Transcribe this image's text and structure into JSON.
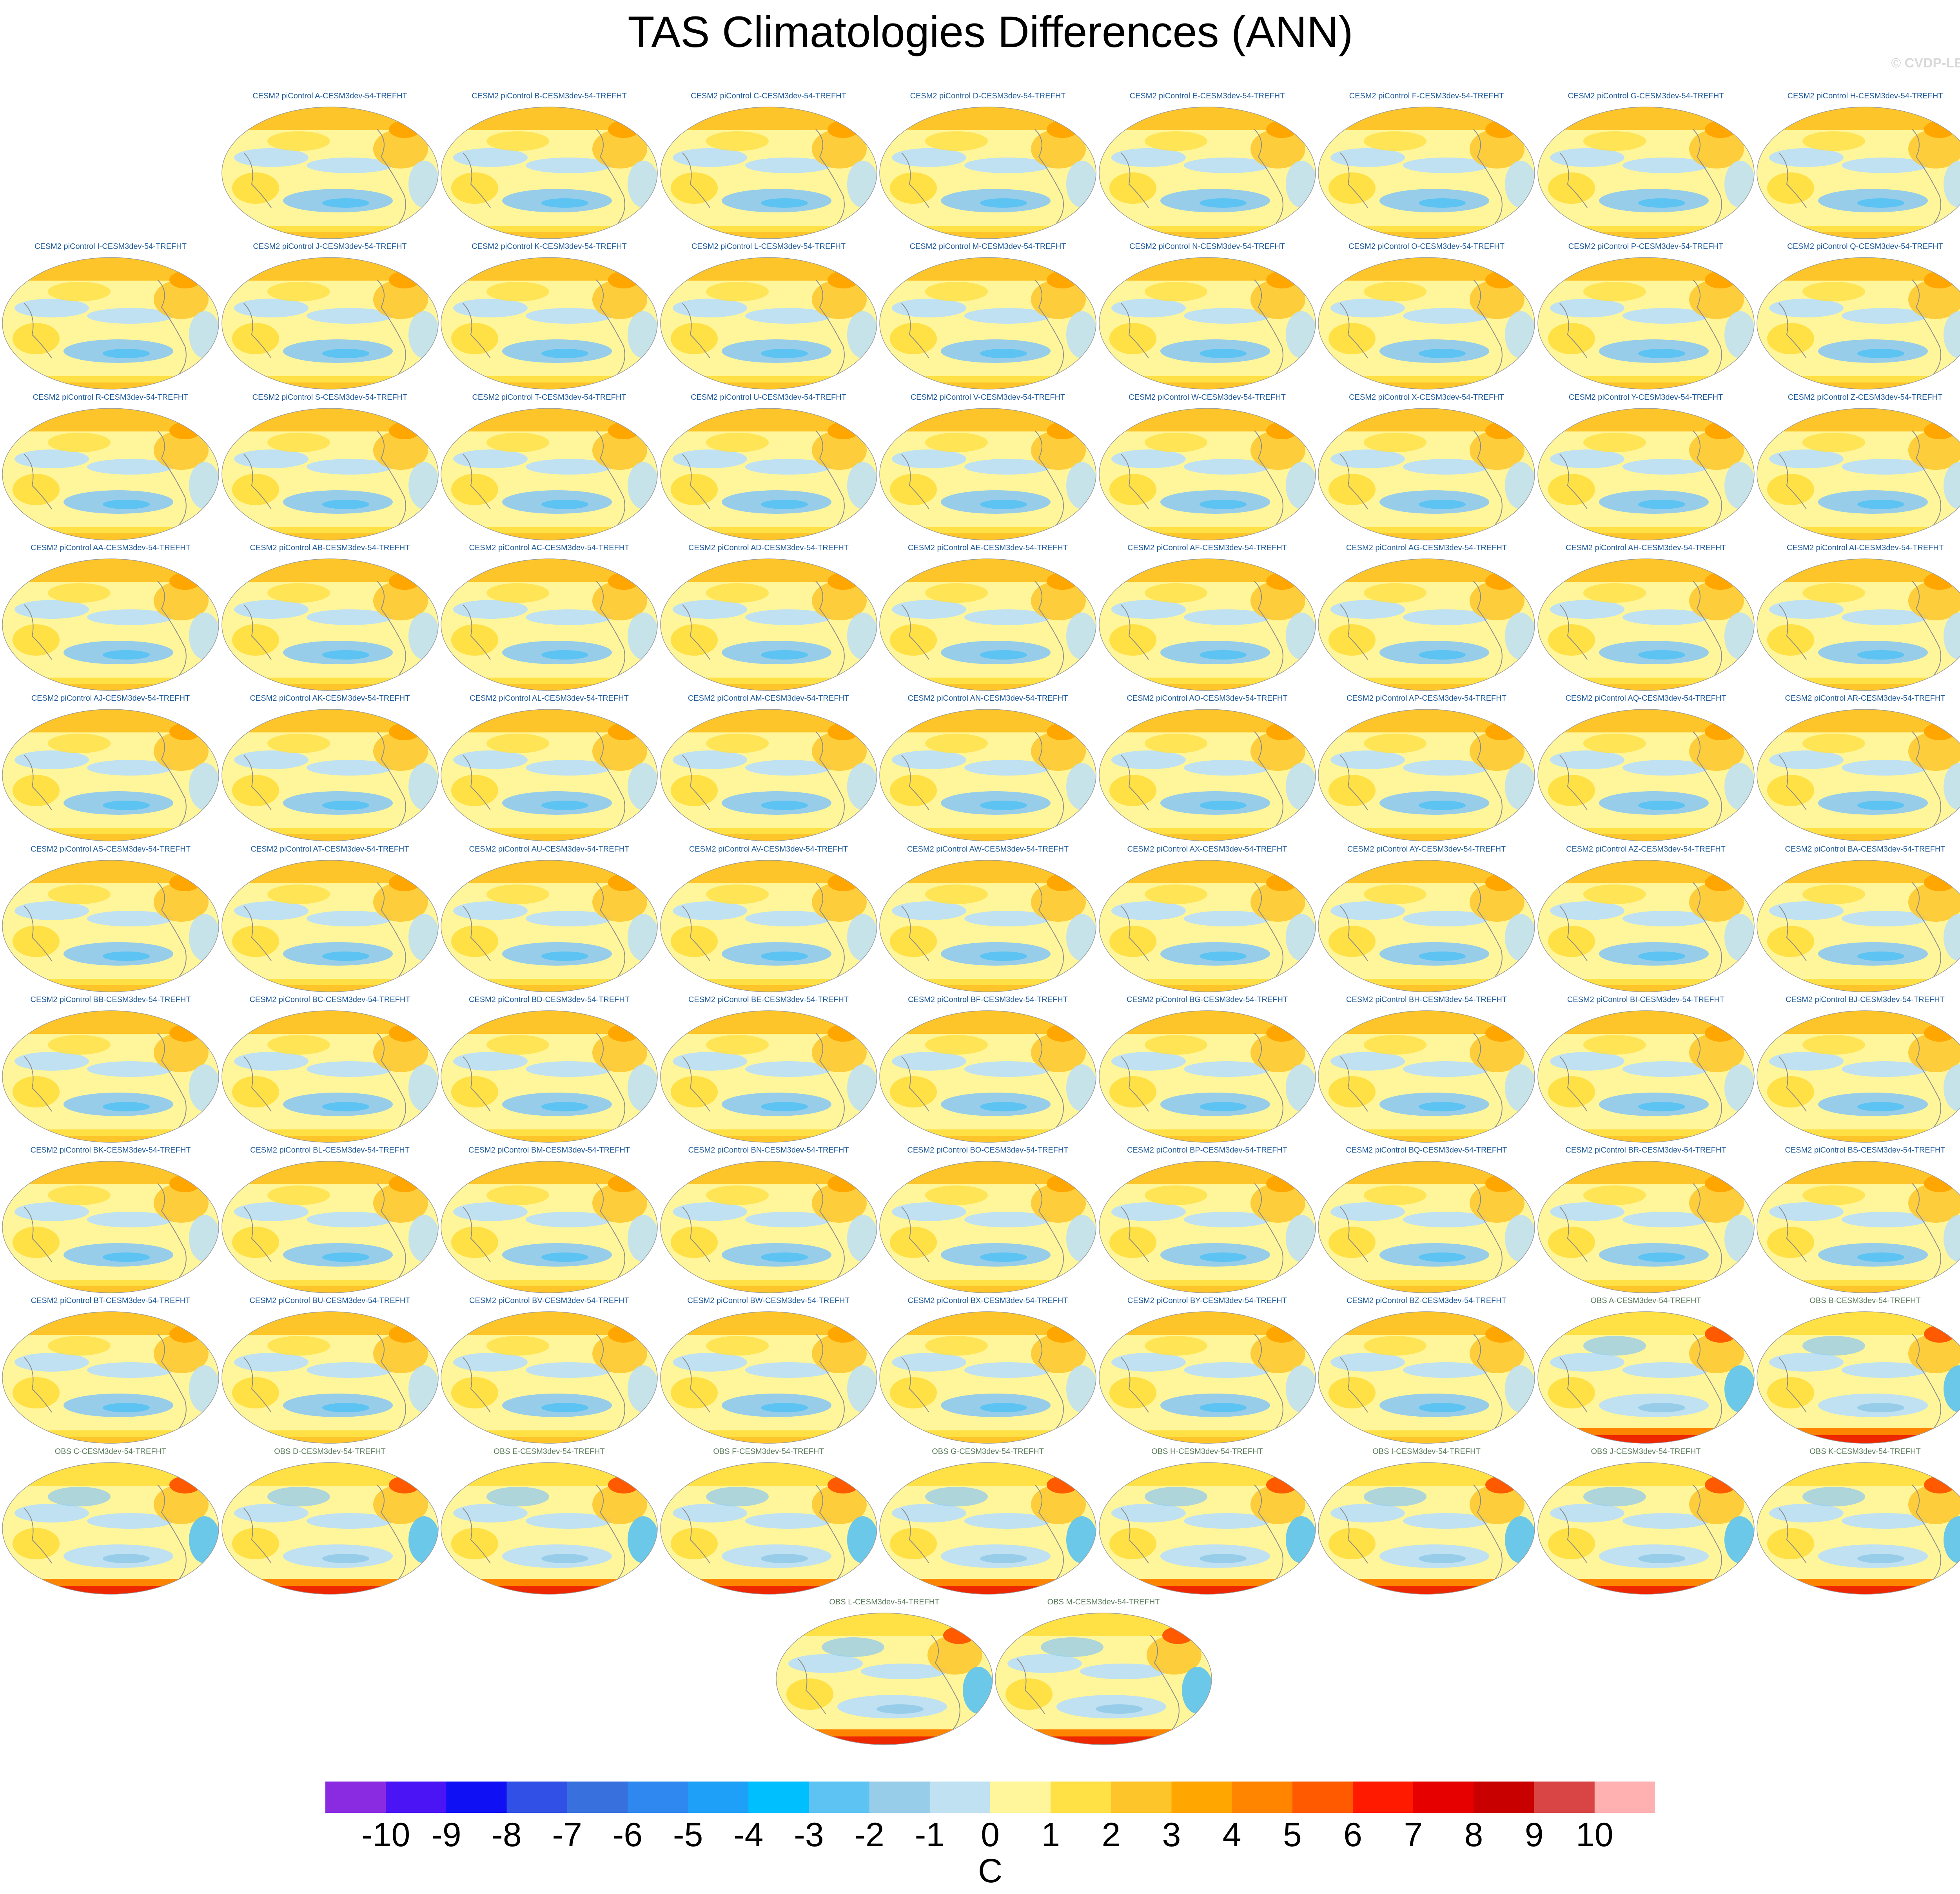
{
  "title": "TAS Climatologies Differences (ANN)",
  "watermark": "© CVDP-LE",
  "chart_data": {
    "type": "heatmap",
    "variable": "TAS",
    "season": "ANN",
    "panels": [
      {
        "label": "CESM2 piControl A-CESM3dev-54-TREFHT",
        "kind": "model"
      },
      {
        "label": "CESM2 piControl B-CESM3dev-54-TREFHT",
        "kind": "model"
      },
      {
        "label": "CESM2 piControl C-CESM3dev-54-TREFHT",
        "kind": "model"
      },
      {
        "label": "CESM2 piControl D-CESM3dev-54-TREFHT",
        "kind": "model"
      },
      {
        "label": "CESM2 piControl E-CESM3dev-54-TREFHT",
        "kind": "model"
      },
      {
        "label": "CESM2 piControl F-CESM3dev-54-TREFHT",
        "kind": "model"
      },
      {
        "label": "CESM2 piControl G-CESM3dev-54-TREFHT",
        "kind": "model"
      },
      {
        "label": "CESM2 piControl H-CESM3dev-54-TREFHT",
        "kind": "model"
      },
      {
        "label": "CESM2 piControl I-CESM3dev-54-TREFHT",
        "kind": "model"
      },
      {
        "label": "CESM2 piControl J-CESM3dev-54-TREFHT",
        "kind": "model"
      },
      {
        "label": "CESM2 piControl K-CESM3dev-54-TREFHT",
        "kind": "model"
      },
      {
        "label": "CESM2 piControl L-CESM3dev-54-TREFHT",
        "kind": "model"
      },
      {
        "label": "CESM2 piControl M-CESM3dev-54-TREFHT",
        "kind": "model"
      },
      {
        "label": "CESM2 piControl N-CESM3dev-54-TREFHT",
        "kind": "model"
      },
      {
        "label": "CESM2 piControl O-CESM3dev-54-TREFHT",
        "kind": "model"
      },
      {
        "label": "CESM2 piControl P-CESM3dev-54-TREFHT",
        "kind": "model"
      },
      {
        "label": "CESM2 piControl Q-CESM3dev-54-TREFHT",
        "kind": "model"
      },
      {
        "label": "CESM2 piControl R-CESM3dev-54-TREFHT",
        "kind": "model"
      },
      {
        "label": "CESM2 piControl S-CESM3dev-54-TREFHT",
        "kind": "model"
      },
      {
        "label": "CESM2 piControl T-CESM3dev-54-TREFHT",
        "kind": "model"
      },
      {
        "label": "CESM2 piControl U-CESM3dev-54-TREFHT",
        "kind": "model"
      },
      {
        "label": "CESM2 piControl V-CESM3dev-54-TREFHT",
        "kind": "model"
      },
      {
        "label": "CESM2 piControl W-CESM3dev-54-TREFHT",
        "kind": "model"
      },
      {
        "label": "CESM2 piControl X-CESM3dev-54-TREFHT",
        "kind": "model"
      },
      {
        "label": "CESM2 piControl Y-CESM3dev-54-TREFHT",
        "kind": "model"
      },
      {
        "label": "CESM2 piControl Z-CESM3dev-54-TREFHT",
        "kind": "model"
      },
      {
        "label": "CESM2 piControl AA-CESM3dev-54-TREFHT",
        "kind": "model"
      },
      {
        "label": "CESM2 piControl AB-CESM3dev-54-TREFHT",
        "kind": "model"
      },
      {
        "label": "CESM2 piControl AC-CESM3dev-54-TREFHT",
        "kind": "model"
      },
      {
        "label": "CESM2 piControl AD-CESM3dev-54-TREFHT",
        "kind": "model"
      },
      {
        "label": "CESM2 piControl AE-CESM3dev-54-TREFHT",
        "kind": "model"
      },
      {
        "label": "CESM2 piControl AF-CESM3dev-54-TREFHT",
        "kind": "model"
      },
      {
        "label": "CESM2 piControl AG-CESM3dev-54-TREFHT",
        "kind": "model"
      },
      {
        "label": "CESM2 piControl AH-CESM3dev-54-TREFHT",
        "kind": "model"
      },
      {
        "label": "CESM2 piControl AI-CESM3dev-54-TREFHT",
        "kind": "model"
      },
      {
        "label": "CESM2 piControl AJ-CESM3dev-54-TREFHT",
        "kind": "model"
      },
      {
        "label": "CESM2 piControl AK-CESM3dev-54-TREFHT",
        "kind": "model"
      },
      {
        "label": "CESM2 piControl AL-CESM3dev-54-TREFHT",
        "kind": "model"
      },
      {
        "label": "CESM2 piControl AM-CESM3dev-54-TREFHT",
        "kind": "model"
      },
      {
        "label": "CESM2 piControl AN-CESM3dev-54-TREFHT",
        "kind": "model"
      },
      {
        "label": "CESM2 piControl AO-CESM3dev-54-TREFHT",
        "kind": "model"
      },
      {
        "label": "CESM2 piControl AP-CESM3dev-54-TREFHT",
        "kind": "model"
      },
      {
        "label": "CESM2 piControl AQ-CESM3dev-54-TREFHT",
        "kind": "model"
      },
      {
        "label": "CESM2 piControl AR-CESM3dev-54-TREFHT",
        "kind": "model"
      },
      {
        "label": "CESM2 piControl AS-CESM3dev-54-TREFHT",
        "kind": "model"
      },
      {
        "label": "CESM2 piControl AT-CESM3dev-54-TREFHT",
        "kind": "model"
      },
      {
        "label": "CESM2 piControl AU-CESM3dev-54-TREFHT",
        "kind": "model"
      },
      {
        "label": "CESM2 piControl AV-CESM3dev-54-TREFHT",
        "kind": "model"
      },
      {
        "label": "CESM2 piControl AW-CESM3dev-54-TREFHT",
        "kind": "model"
      },
      {
        "label": "CESM2 piControl AX-CESM3dev-54-TREFHT",
        "kind": "model"
      },
      {
        "label": "CESM2 piControl AY-CESM3dev-54-TREFHT",
        "kind": "model"
      },
      {
        "label": "CESM2 piControl AZ-CESM3dev-54-TREFHT",
        "kind": "model"
      },
      {
        "label": "CESM2 piControl BA-CESM3dev-54-TREFHT",
        "kind": "model"
      },
      {
        "label": "CESM2 piControl BB-CESM3dev-54-TREFHT",
        "kind": "model"
      },
      {
        "label": "CESM2 piControl BC-CESM3dev-54-TREFHT",
        "kind": "model"
      },
      {
        "label": "CESM2 piControl BD-CESM3dev-54-TREFHT",
        "kind": "model"
      },
      {
        "label": "CESM2 piControl BE-CESM3dev-54-TREFHT",
        "kind": "model"
      },
      {
        "label": "CESM2 piControl BF-CESM3dev-54-TREFHT",
        "kind": "model"
      },
      {
        "label": "CESM2 piControl BG-CESM3dev-54-TREFHT",
        "kind": "model"
      },
      {
        "label": "CESM2 piControl BH-CESM3dev-54-TREFHT",
        "kind": "model"
      },
      {
        "label": "CESM2 piControl BI-CESM3dev-54-TREFHT",
        "kind": "model"
      },
      {
        "label": "CESM2 piControl BJ-CESM3dev-54-TREFHT",
        "kind": "model"
      },
      {
        "label": "CESM2 piControl BK-CESM3dev-54-TREFHT",
        "kind": "model"
      },
      {
        "label": "CESM2 piControl BL-CESM3dev-54-TREFHT",
        "kind": "model"
      },
      {
        "label": "CESM2 piControl BM-CESM3dev-54-TREFHT",
        "kind": "model"
      },
      {
        "label": "CESM2 piControl BN-CESM3dev-54-TREFHT",
        "kind": "model"
      },
      {
        "label": "CESM2 piControl BO-CESM3dev-54-TREFHT",
        "kind": "model"
      },
      {
        "label": "CESM2 piControl BP-CESM3dev-54-TREFHT",
        "kind": "model"
      },
      {
        "label": "CESM2 piControl BQ-CESM3dev-54-TREFHT",
        "kind": "model"
      },
      {
        "label": "CESM2 piControl BR-CESM3dev-54-TREFHT",
        "kind": "model"
      },
      {
        "label": "CESM2 piControl BS-CESM3dev-54-TREFHT",
        "kind": "model"
      },
      {
        "label": "CESM2 piControl BT-CESM3dev-54-TREFHT",
        "kind": "model"
      },
      {
        "label": "CESM2 piControl BU-CESM3dev-54-TREFHT",
        "kind": "model"
      },
      {
        "label": "CESM2 piControl BV-CESM3dev-54-TREFHT",
        "kind": "model"
      },
      {
        "label": "CESM2 piControl BW-CESM3dev-54-TREFHT",
        "kind": "model"
      },
      {
        "label": "CESM2 piControl BX-CESM3dev-54-TREFHT",
        "kind": "model"
      },
      {
        "label": "CESM2 piControl BY-CESM3dev-54-TREFHT",
        "kind": "model"
      },
      {
        "label": "CESM2 piControl BZ-CESM3dev-54-TREFHT",
        "kind": "model"
      },
      {
        "label": "OBS A-CESM3dev-54-TREFHT",
        "kind": "obs"
      },
      {
        "label": "OBS B-CESM3dev-54-TREFHT",
        "kind": "obs"
      },
      {
        "label": "OBS C-CESM3dev-54-TREFHT",
        "kind": "obs"
      },
      {
        "label": "OBS D-CESM3dev-54-TREFHT",
        "kind": "obs"
      },
      {
        "label": "OBS E-CESM3dev-54-TREFHT",
        "kind": "obs"
      },
      {
        "label": "OBS F-CESM3dev-54-TREFHT",
        "kind": "obs"
      },
      {
        "label": "OBS G-CESM3dev-54-TREFHT",
        "kind": "obs"
      },
      {
        "label": "OBS H-CESM3dev-54-TREFHT",
        "kind": "obs"
      },
      {
        "label": "OBS I-CESM3dev-54-TREFHT",
        "kind": "obs"
      },
      {
        "label": "OBS J-CESM3dev-54-TREFHT",
        "kind": "obs"
      },
      {
        "label": "OBS K-CESM3dev-54-TREFHT",
        "kind": "obs"
      },
      {
        "label": "OBS L-CESM3dev-54-TREFHT",
        "kind": "obs"
      },
      {
        "label": "OBS M-CESM3dev-54-TREFHT",
        "kind": "obs"
      }
    ],
    "colorbar": {
      "unit": "C",
      "ticks": [
        "-10",
        "-9",
        "-8",
        "-7",
        "-6",
        "-5",
        "-4",
        "-3",
        "-2",
        "-1",
        "0",
        "1",
        "2",
        "3",
        "4",
        "5",
        "6",
        "7",
        "8",
        "9",
        "10"
      ],
      "colors": [
        "#8a2be2",
        "#4b14f5",
        "#1010f5",
        "#3050e6",
        "#3870de",
        "#2f88ef",
        "#1fa0f8",
        "#00bfff",
        "#5cc3f2",
        "#98cdea",
        "#bfe1f2",
        "#fff59a",
        "#ffe045",
        "#fdc52a",
        "#ffa600",
        "#ff8500",
        "#ff5a00",
        "#ff1a00",
        "#e60000",
        "#c80000",
        "#d94545",
        "#ffb0b0"
      ]
    }
  }
}
